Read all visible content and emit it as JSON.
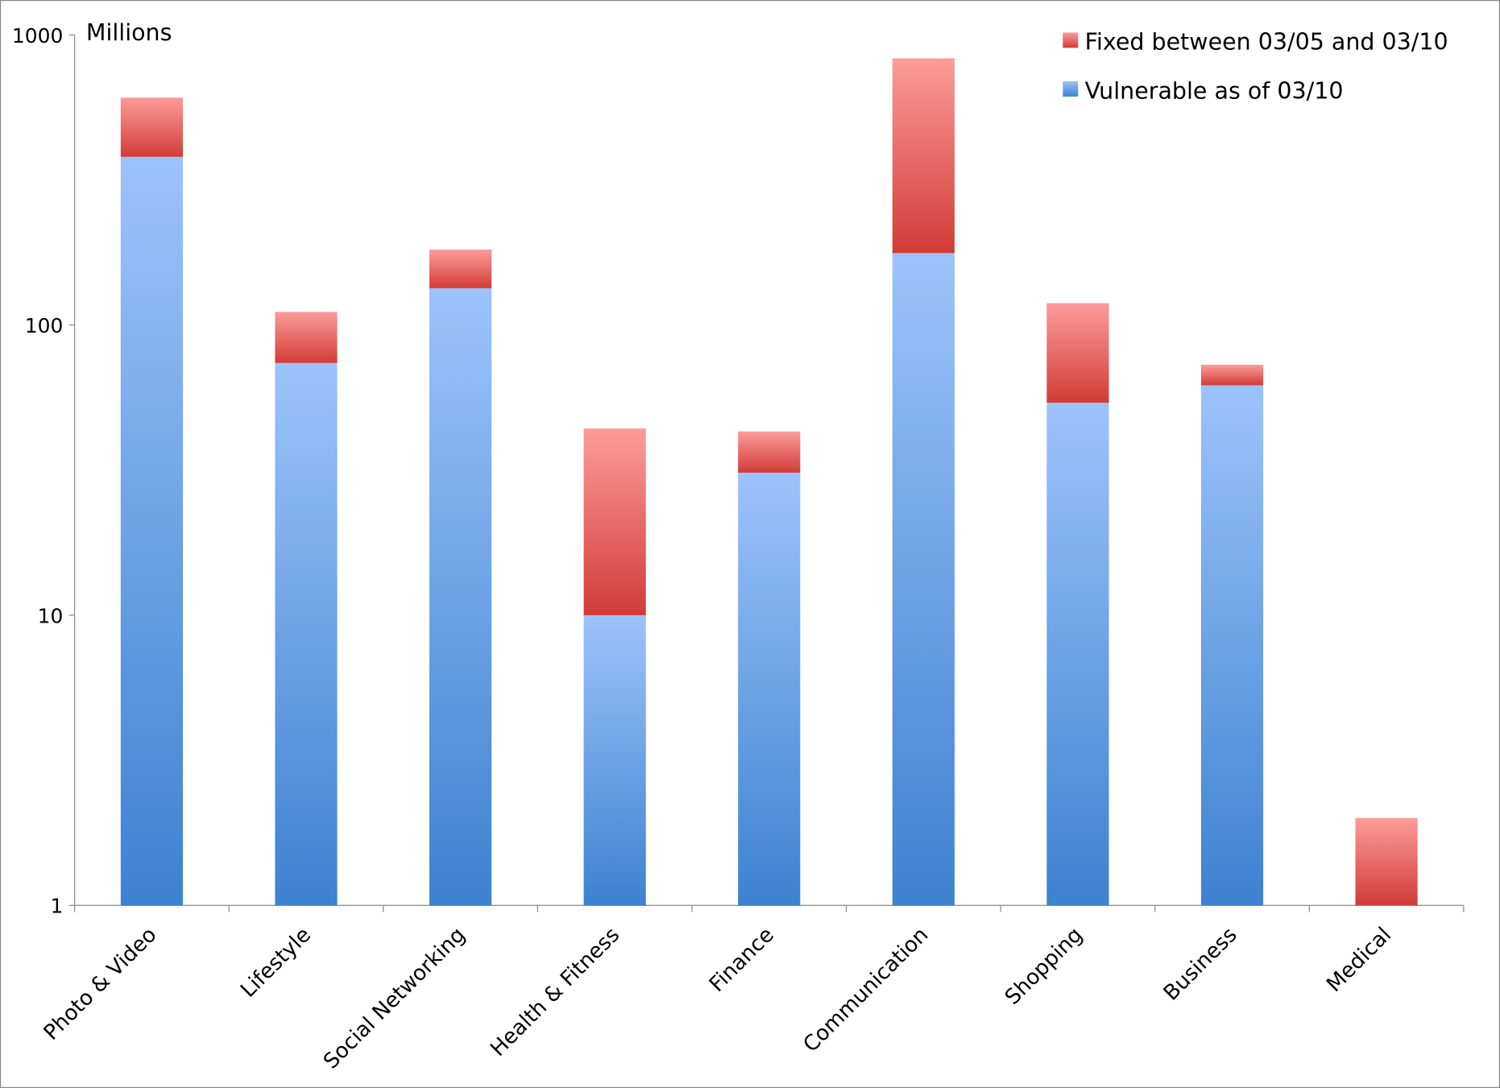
{
  "chart_data": {
    "type": "bar",
    "stacked": true,
    "yscale": "log",
    "ylim": [
      1,
      1000
    ],
    "ylabel": "Millions",
    "yticks": [
      "1",
      "10",
      "100",
      "1000"
    ],
    "ytick_values": [
      1,
      10,
      100,
      1000
    ],
    "legend_position": "top-right",
    "categories": [
      "Photo & Video",
      "Lifestyle",
      "Social Networking",
      "Health & Fitness",
      "Finance",
      "Communication",
      "Shopping",
      "Business",
      "Medical"
    ],
    "series": [
      {
        "name": "Vulnerable as of 03/10",
        "color_top": "#9cc3fb",
        "color_bottom": "#3d82d0",
        "values": [
          380,
          74,
          134,
          10,
          31,
          177,
          54,
          62,
          0
        ]
      },
      {
        "name": "Fixed between 03/05 and 03/10",
        "color_top": "#fc9c9a",
        "color_bottom": "#d23c37",
        "values": [
          228,
          37,
          48,
          34,
          12,
          653,
          65,
          11,
          2
        ]
      }
    ],
    "legend_order": [
      1,
      0
    ]
  }
}
